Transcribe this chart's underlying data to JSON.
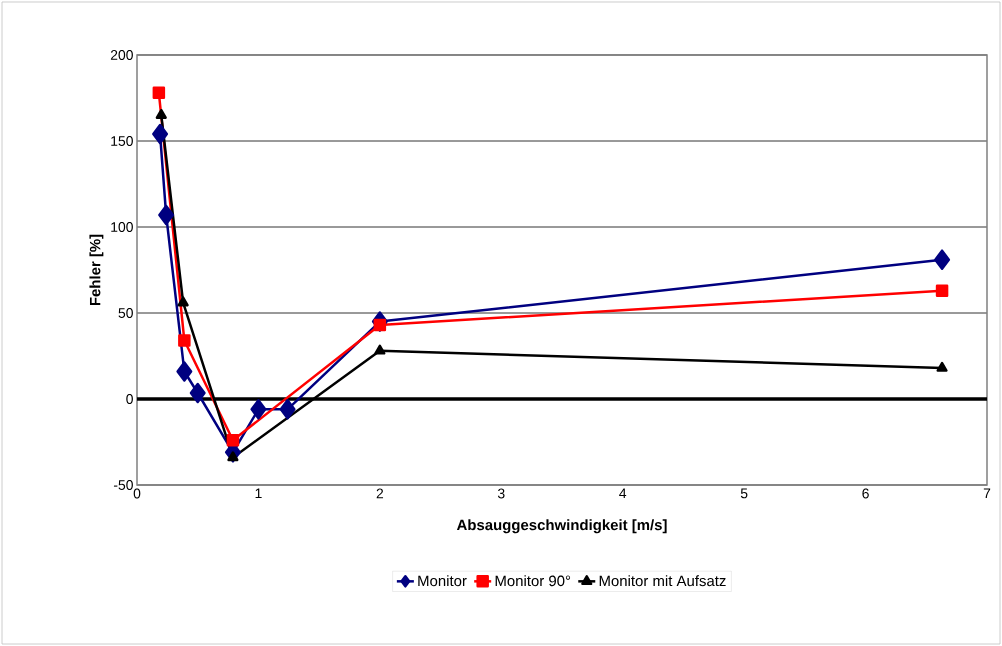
{
  "chart_data": {
    "type": "line",
    "xlabel": "Absauggeschwindigkeit [m/s]",
    "ylabel": "Fehler [%]",
    "xlim": [
      0,
      7
    ],
    "xticks": [
      0,
      1,
      2,
      3,
      4,
      5,
      6,
      7
    ],
    "ylim": [
      -50,
      200
    ],
    "yticks": [
      -50,
      0,
      50,
      100,
      150,
      200
    ],
    "grid": "y",
    "legend": "bottom",
    "line_style": "solid",
    "ref_lines": [
      {
        "axis": "y",
        "value": 0,
        "color": "#000000"
      }
    ],
    "series": [
      {
        "name": "Monitor",
        "color": "#000080",
        "marker": "diamond",
        "x": [
          0.19,
          0.24,
          0.39,
          0.5,
          0.79,
          1.0,
          1.24,
          2.0,
          6.63
        ],
        "values": [
          154,
          107,
          16,
          3.5,
          -31,
          -6,
          -6,
          45,
          81
        ]
      },
      {
        "name": "Monitor 90°",
        "color": "#ff0000",
        "marker": "square",
        "x": [
          0.18,
          0.39,
          0.79,
          2.0,
          6.63
        ],
        "values": [
          178,
          34,
          -24,
          43,
          63
        ]
      },
      {
        "name": "Monitor mit Aufsatz",
        "color": "#000000",
        "marker": "triangle",
        "x": [
          0.2,
          0.38,
          0.79,
          2.0,
          6.63
        ],
        "values": [
          165,
          56,
          -34,
          28,
          18
        ]
      }
    ]
  }
}
